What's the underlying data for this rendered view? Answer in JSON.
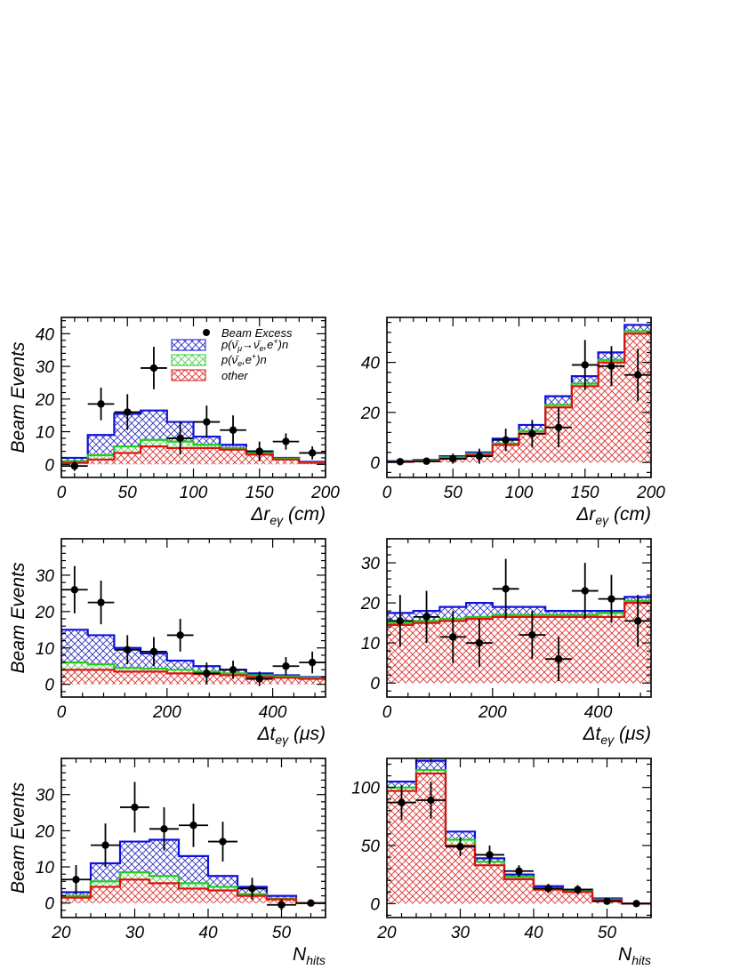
{
  "legend": {
    "entries": [
      {
        "label": "Beam Excess",
        "kind": "marker"
      },
      {
        "label": "p(ν̄",
        "sub1": "μ",
        "mid": "→ν̄",
        "sub2": "e",
        "tail": ",e",
        "sup": "+",
        "end": ")n",
        "kind": "signal"
      },
      {
        "label": "p(ν̄",
        "sub1": "e",
        "mid": ",e",
        "sup": "+",
        "end": ")n",
        "kind": "nuebar"
      },
      {
        "label": "other",
        "kind": "other"
      }
    ]
  },
  "colors": {
    "signal": "#1010e0",
    "nuebar": "#22cc22",
    "other": "#e01010",
    "signal_hatch": "#3030c0",
    "nuebar_hatch": "#55cc55",
    "other_hatch": "#dd3030"
  },
  "chart_data": [
    {
      "type": "bar",
      "panel": "dr-excess",
      "xlabel": "Δr",
      "xlabel_sub": "eγ",
      "xlabel_unit": " (cm)",
      "ylabel": "Beam Events",
      "xlim": [
        0,
        200
      ],
      "ylim": [
        -4,
        45
      ],
      "xticks": [
        0,
        50,
        100,
        150,
        200
      ],
      "yticks": [
        0,
        10,
        20,
        30,
        40
      ],
      "bin_edges": [
        0,
        20,
        40,
        60,
        80,
        100,
        120,
        140,
        160,
        180,
        200
      ],
      "other": [
        0.5,
        1.5,
        3.5,
        5.5,
        5.0,
        5.0,
        4.5,
        3.0,
        1.5,
        0.5
      ],
      "nuebar": [
        1.0,
        2.8,
        5.5,
        7.5,
        7.0,
        6.0,
        5.0,
        3.5,
        1.8,
        0.6
      ],
      "signal": [
        2.0,
        9.0,
        15.5,
        16.5,
        13.0,
        8.5,
        6.0,
        4.0,
        2.0,
        0.8
      ],
      "excess": {
        "x": [
          10,
          30,
          50,
          70,
          90,
          110,
          130,
          150,
          170,
          190
        ],
        "y": [
          -0.5,
          18.5,
          16.0,
          29.5,
          8.0,
          13.0,
          10.5,
          4.0,
          7.0,
          3.5
        ],
        "yerr": [
          1.5,
          5.0,
          5.5,
          6.5,
          5.0,
          5.0,
          4.5,
          3.0,
          2.5,
          2.0
        ]
      }
    },
    {
      "type": "bar",
      "panel": "dr-total",
      "xlabel": "Δr",
      "xlabel_sub": "eγ",
      "xlabel_unit": " (cm)",
      "ylabel": "",
      "xlim": [
        0,
        200
      ],
      "ylim": [
        -6,
        58
      ],
      "xticks": [
        0,
        50,
        100,
        150,
        200
      ],
      "yticks": [
        0,
        20,
        40
      ],
      "bin_edges": [
        0,
        20,
        40,
        60,
        80,
        100,
        120,
        140,
        160,
        180,
        200
      ],
      "other": [
        0.2,
        0.5,
        1.5,
        3.0,
        7.0,
        11.5,
        22.0,
        30.5,
        40.0,
        51.5
      ],
      "nuebar": [
        0.3,
        0.7,
        2.0,
        3.5,
        7.5,
        12.5,
        23.0,
        31.5,
        41.0,
        52.5
      ],
      "signal": [
        0.5,
        1.0,
        2.5,
        4.0,
        9.5,
        15.0,
        26.5,
        34.5,
        44.0,
        55.0
      ],
      "excess": {
        "x": [
          10,
          30,
          50,
          70,
          90,
          110,
          130,
          150,
          170,
          190
        ],
        "y": [
          0.3,
          0.5,
          1.5,
          2.5,
          9.0,
          11.5,
          14.0,
          39.0,
          38.5,
          35.0
        ],
        "yerr": [
          0.5,
          0.7,
          2.0,
          3.0,
          4.5,
          5.5,
          8.0,
          10.0,
          8.0,
          10.5
        ]
      }
    },
    {
      "type": "bar",
      "panel": "dt-excess",
      "xlabel": "Δt",
      "xlabel_sub": "eγ",
      "xlabel_unit": " (μs)",
      "ylabel": "Beam Events",
      "xlim": [
        0,
        500
      ],
      "ylim": [
        -3.5,
        40
      ],
      "xticks": [
        0,
        200,
        400
      ],
      "yticks": [
        0,
        10,
        20,
        30
      ],
      "bin_edges": [
        0,
        50,
        100,
        150,
        200,
        250,
        300,
        350,
        400,
        450,
        500
      ],
      "other": [
        4.0,
        4.0,
        3.5,
        3.5,
        3.0,
        2.8,
        2.5,
        2.0,
        1.8,
        1.5
      ],
      "nuebar": [
        6.0,
        5.5,
        4.5,
        4.3,
        4.0,
        3.5,
        3.0,
        2.5,
        2.2,
        1.8
      ],
      "signal": [
        15.0,
        13.5,
        10.0,
        8.5,
        6.5,
        5.0,
        4.0,
        3.0,
        2.5,
        2.0
      ],
      "excess": {
        "x": [
          25,
          75,
          125,
          175,
          225,
          275,
          325,
          375,
          425,
          475
        ],
        "y": [
          26.0,
          22.5,
          9.5,
          9.0,
          13.5,
          3.0,
          4.0,
          1.5,
          5.0,
          6.0
        ],
        "yerr": [
          6.5,
          6.0,
          4.0,
          4.0,
          4.5,
          3.0,
          2.5,
          2.0,
          2.5,
          3.0
        ]
      }
    },
    {
      "type": "bar",
      "panel": "dt-total",
      "xlabel": "Δt",
      "xlabel_sub": "eγ",
      "xlabel_unit": " (μs)",
      "ylabel": "",
      "xlim": [
        0,
        500
      ],
      "ylim": [
        -3.5,
        36
      ],
      "xticks": [
        0,
        200,
        400
      ],
      "yticks": [
        0,
        10,
        20,
        30
      ],
      "bin_edges": [
        0,
        50,
        100,
        150,
        200,
        250,
        300,
        350,
        400,
        450,
        500
      ],
      "other": [
        14.5,
        15.0,
        15.5,
        16.0,
        16.5,
        16.5,
        16.5,
        16.5,
        16.5,
        20.0
      ],
      "nuebar": [
        15.0,
        15.5,
        16.0,
        16.5,
        17.0,
        17.0,
        17.0,
        17.0,
        17.5,
        20.5
      ],
      "signal": [
        17.5,
        18.0,
        19.0,
        20.0,
        19.0,
        19.0,
        18.0,
        18.0,
        18.0,
        21.5
      ],
      "excess": {
        "x": [
          25,
          75,
          125,
          175,
          225,
          275,
          325,
          375,
          425,
          475
        ],
        "y": [
          15.5,
          16.5,
          11.5,
          10.0,
          23.5,
          12.0,
          6.0,
          23.0,
          21.0,
          15.5
        ],
        "yerr": [
          6.5,
          6.5,
          6.5,
          6.0,
          7.5,
          6.0,
          5.5,
          7.0,
          6.0,
          6.5
        ]
      }
    },
    {
      "type": "bar",
      "panel": "nhits-excess",
      "xlabel": "N",
      "xlabel_sub": "hits",
      "xlabel_unit": "",
      "ylabel": "Beam Events",
      "xlim": [
        20,
        56
      ],
      "ylim": [
        -4,
        40
      ],
      "xticks": [
        20,
        30,
        40,
        50
      ],
      "yticks": [
        0,
        10,
        20,
        30
      ],
      "bin_edges": [
        20,
        24,
        28,
        32,
        36,
        40,
        44,
        48,
        52,
        56
      ],
      "other": [
        1.5,
        4.5,
        6.5,
        5.5,
        4.0,
        3.5,
        2.0,
        1.0,
        0.0
      ],
      "nuebar": [
        2.0,
        6.0,
        8.5,
        7.5,
        5.5,
        4.5,
        2.5,
        1.2,
        0.0
      ],
      "signal": [
        3.0,
        11.0,
        17.0,
        17.5,
        13.0,
        7.5,
        4.5,
        2.0,
        0.0
      ],
      "excess": {
        "x": [
          22,
          26,
          30,
          34,
          38,
          42,
          46,
          50,
          54
        ],
        "y": [
          6.5,
          16.0,
          26.5,
          20.5,
          21.5,
          17.0,
          4.0,
          -0.5,
          0.0
        ],
        "yerr": [
          4.0,
          6.0,
          7.0,
          6.0,
          6.0,
          5.5,
          3.0,
          1.5,
          0.3
        ]
      }
    },
    {
      "type": "bar",
      "panel": "nhits-total",
      "xlabel": "N",
      "xlabel_sub": "hits",
      "xlabel_unit": "",
      "ylabel": "",
      "xlim": [
        20,
        56
      ],
      "ylim": [
        -12,
        125
      ],
      "xticks": [
        20,
        30,
        40,
        50
      ],
      "yticks": [
        0,
        50,
        100
      ],
      "bin_edges": [
        20,
        24,
        28,
        32,
        36,
        40,
        44,
        48,
        52,
        56
      ],
      "other": [
        97,
        112,
        50,
        33,
        21,
        12,
        10,
        3,
        0
      ],
      "nuebar": [
        100,
        115,
        55,
        36,
        23,
        13,
        11,
        3.5,
        0
      ],
      "signal": [
        105,
        123,
        62,
        39,
        25,
        15,
        12,
        4.5,
        0
      ],
      "excess": {
        "x": [
          22,
          26,
          30,
          34,
          38,
          42,
          46,
          50,
          54
        ],
        "y": [
          87,
          89,
          49,
          42,
          28,
          13,
          12,
          2.0,
          0.0
        ],
        "yerr": [
          15,
          16,
          8,
          8,
          5,
          4,
          4,
          1.5,
          0.5
        ]
      }
    }
  ]
}
